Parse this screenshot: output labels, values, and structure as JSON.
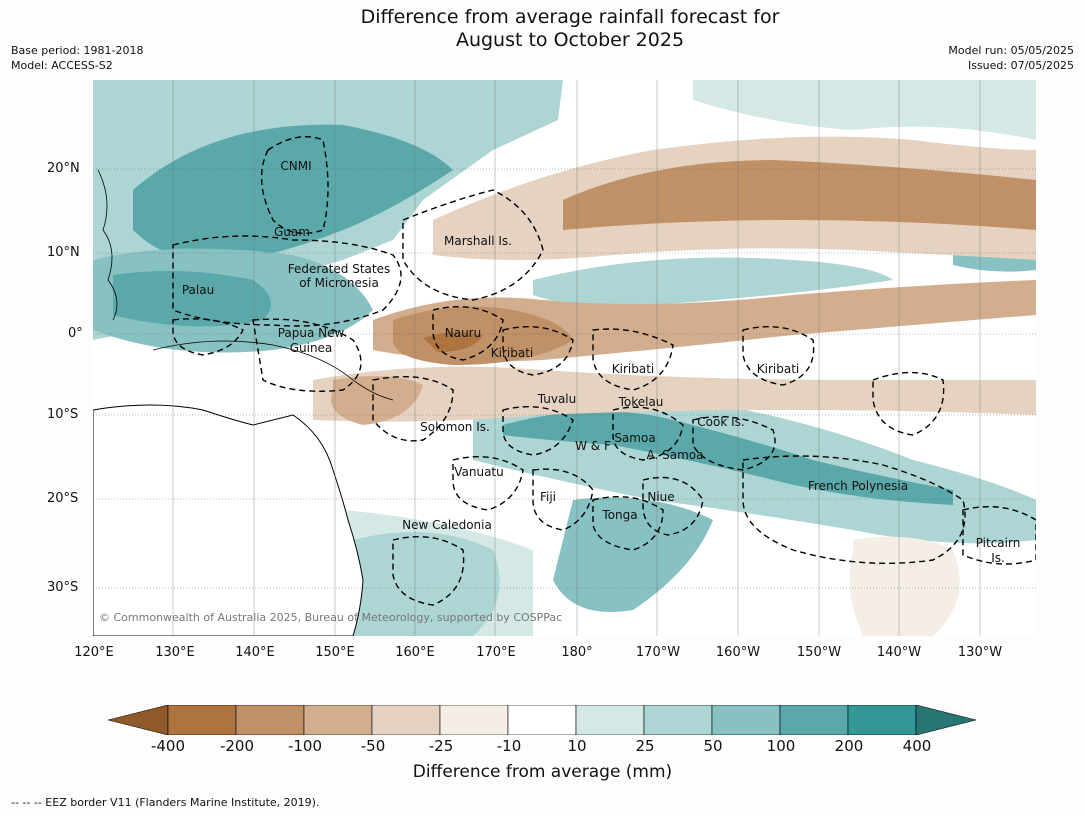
{
  "header": {
    "title_line1": "Difference from average rainfall forecast for",
    "title_line2": "August to October 2025",
    "base_period": "Base period: 1981-2018",
    "model": "Model: ACCESS-S2",
    "model_run": "Model run: 05/05/2025",
    "issued": "Issued: 07/05/2025"
  },
  "map": {
    "copyright": "© Commonwealth of Australia 2025, Bureau of Meteorology, supported by COSPPac",
    "lat_labels": [
      "20°N",
      "10°N",
      "0°",
      "10°S",
      "20°S",
      "30°S"
    ],
    "lon_labels": [
      "120°E",
      "130°E",
      "140°E",
      "150°E",
      "160°E",
      "170°E",
      "180°",
      "170°W",
      "160°W",
      "150°W",
      "140°W",
      "130°W"
    ],
    "regions": [
      "CNMI",
      "Guam",
      "Marshall Is.",
      "Federated States",
      "of Micronesia",
      "Palau",
      "Papua New",
      "Guinea",
      "Nauru",
      "Kiribati",
      "Kiribati",
      "Kiribati",
      "Tuvalu",
      "Tokelau",
      "Solomon Is.",
      "Cook Is.",
      "W & F",
      "Samoa",
      "A. Samoa",
      "Vanuatu",
      "Fiji",
      "Niue",
      "Tonga",
      "French Polynesia",
      "New Caledonia",
      "Pitcairn",
      "Is."
    ]
  },
  "legend": {
    "title": "Difference from average (mm)",
    "ticks": [
      "-400",
      "-200",
      "-100",
      "-50",
      "-25",
      "-10",
      "10",
      "25",
      "50",
      "100",
      "200",
      "400"
    ],
    "colors": [
      "#8f5a29",
      "#ad7440",
      "#c09066",
      "#d2ae8e",
      "#e5d2c1",
      "#f4eee7",
      "#ffffff",
      "#d4e9e6",
      "#acd5d3",
      "#87c1c1",
      "#5aa8a9",
      "#349796",
      "#257674"
    ]
  },
  "footer": {
    "eez_note": "--  --  -- EEZ border V11 (Flanders Marine Institute, 2019)."
  }
}
